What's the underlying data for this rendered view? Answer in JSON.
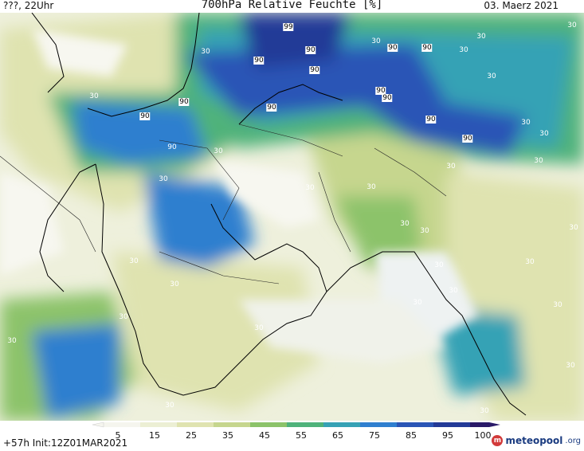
{
  "header": {
    "left": "???, 22Uhr",
    "title": "700hPa Relative Feuchte [%]",
    "date": "03. Maerz 2021"
  },
  "footer": {
    "run": "+57h Init:12Z01MAR2021",
    "logo_name": "meteopool",
    "logo_tld": ".org"
  },
  "legend": {
    "ticks": [
      "5",
      "15",
      "25",
      "35",
      "45",
      "55",
      "65",
      "75",
      "85",
      "95",
      "100"
    ],
    "colors": [
      "#f5f5ee",
      "#ecefd4",
      "#dfe3b0",
      "#c6d68e",
      "#8cc36a",
      "#4fb27a",
      "#36a2b5",
      "#2f7fcf",
      "#2a55b6",
      "#233a97",
      "#2a1a68"
    ]
  },
  "map_labels": {
    "values": [
      "90",
      "90",
      "90",
      "90",
      "90",
      "90",
      "90",
      "90",
      "90",
      "90",
      "90",
      "90",
      "99",
      "30"
    ]
  }
}
